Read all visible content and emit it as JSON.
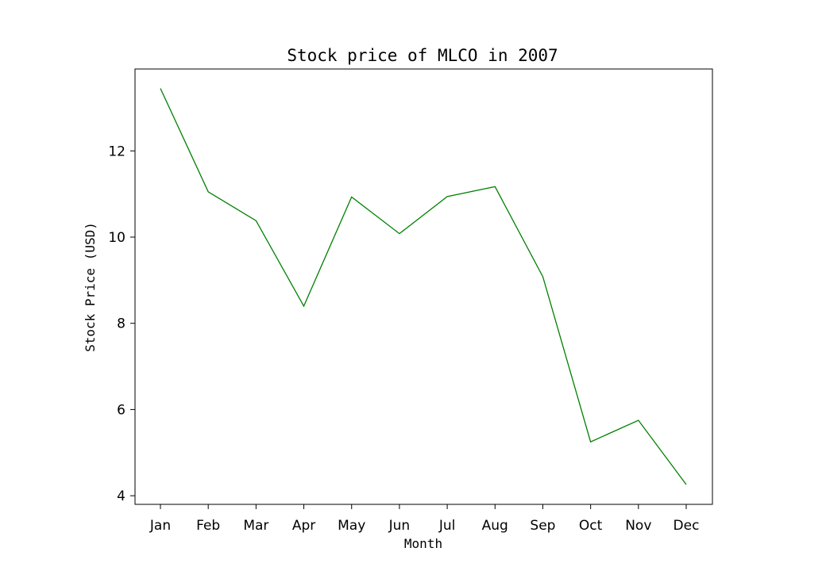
{
  "chart_data": {
    "type": "line",
    "title": "Stock price of MLCO in 2007",
    "xlabel": "Month",
    "ylabel": "Stock Price (USD)",
    "categories": [
      "Jan",
      "Feb",
      "Mar",
      "Apr",
      "May",
      "Jun",
      "Jul",
      "Aug",
      "Sep",
      "Oct",
      "Nov",
      "Dec"
    ],
    "series": [
      {
        "values": [
          13.45,
          11.05,
          10.38,
          8.4,
          10.93,
          10.08,
          10.94,
          11.17,
          9.08,
          5.25,
          5.75,
          4.26
        ],
        "color": "#008000"
      }
    ],
    "yticks": [
      4,
      6,
      8,
      10,
      12
    ],
    "ylim": [
      3.8,
      13.9
    ],
    "grid": false,
    "legend": false
  }
}
